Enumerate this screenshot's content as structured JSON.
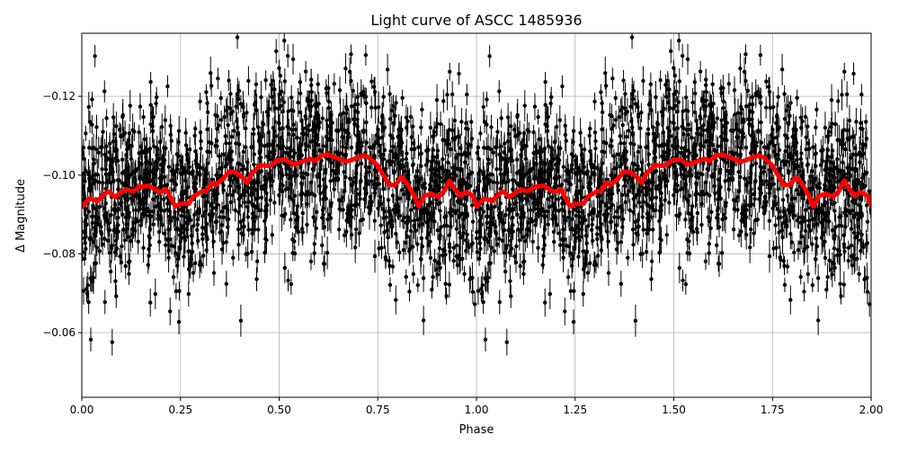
{
  "chart_data": {
    "type": "scatter",
    "title": "Light curve of ASCC 1485936",
    "xlabel": "Phase",
    "ylabel": "Δ Magnitude",
    "xlim": [
      0,
      2
    ],
    "ylim": [
      -0.0436,
      -0.136
    ],
    "y_inverted": true,
    "grid": true,
    "legend": "none",
    "xticks": [
      "0.00",
      "0.25",
      "0.50",
      "0.75",
      "1.00",
      "1.25",
      "1.50",
      "1.75",
      "2.00"
    ],
    "xtick_values": [
      0,
      0.25,
      0.5,
      0.75,
      1,
      1.25,
      1.5,
      1.75,
      2
    ],
    "yticks": [
      "−0.12",
      "−0.10",
      "−0.08",
      "−0.06"
    ],
    "ytick_values": [
      -0.12,
      -0.1,
      -0.08,
      -0.06
    ],
    "phase_repeat": 1,
    "series": [
      {
        "kind": "points-with-errorbars",
        "color": "#000000",
        "approx_scatter_sigma": 0.011,
        "approx_error": 0.003
      },
      {
        "kind": "binned-mean-line",
        "color": "#ff0000",
        "x": [
          0.0,
          0.02,
          0.039,
          0.055,
          0.066,
          0.084,
          0.112,
          0.13,
          0.146,
          0.169,
          0.185,
          0.198,
          0.214,
          0.226,
          0.237,
          0.248,
          0.271,
          0.282,
          0.305,
          0.317,
          0.328,
          0.339,
          0.358,
          0.374,
          0.39,
          0.403,
          0.419,
          0.431,
          0.453,
          0.476,
          0.499,
          0.517,
          0.535,
          0.563,
          0.579,
          0.59,
          0.608,
          0.624,
          0.647,
          0.67,
          0.686,
          0.699,
          0.715,
          0.727,
          0.749,
          0.768,
          0.779,
          0.795,
          0.809,
          0.822,
          0.841,
          0.854,
          0.868,
          0.886,
          0.904,
          0.918,
          0.932,
          0.945,
          0.959,
          0.973,
          0.991,
          1.0
        ],
        "y": [
          -0.092,
          -0.0941,
          -0.0934,
          -0.095,
          -0.0959,
          -0.0945,
          -0.0964,
          -0.0959,
          -0.097,
          -0.0973,
          -0.0964,
          -0.0957,
          -0.0964,
          -0.0941,
          -0.092,
          -0.0927,
          -0.0927,
          -0.0945,
          -0.0959,
          -0.0961,
          -0.098,
          -0.0975,
          -0.0991,
          -0.1009,
          -0.1007,
          -0.0998,
          -0.098,
          -0.1005,
          -0.1025,
          -0.1023,
          -0.1039,
          -0.1039,
          -0.1027,
          -0.1036,
          -0.1041,
          -0.1036,
          -0.105,
          -0.1052,
          -0.1043,
          -0.1034,
          -0.1039,
          -0.1045,
          -0.105,
          -0.1045,
          -0.1025,
          -0.0993,
          -0.0975,
          -0.0975,
          -0.0995,
          -0.0982,
          -0.095,
          -0.092,
          -0.0948,
          -0.0952,
          -0.0945,
          -0.0959,
          -0.0986,
          -0.0964,
          -0.0948,
          -0.0957,
          -0.0948,
          -0.0923
        ]
      }
    ]
  }
}
